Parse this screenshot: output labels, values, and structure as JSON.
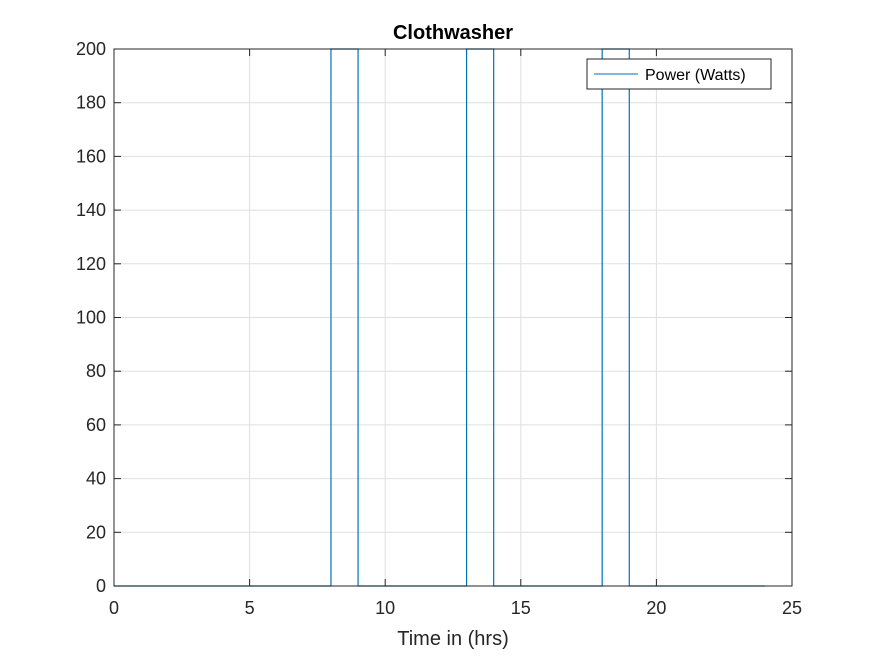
{
  "chart_data": {
    "type": "line",
    "title": "Clothwasher",
    "xlabel": "Time in (hrs)",
    "ylabel": "",
    "xlim": [
      0,
      25
    ],
    "ylim": [
      0,
      200
    ],
    "xticks": [
      0,
      5,
      10,
      15,
      20,
      25
    ],
    "yticks": [
      0,
      20,
      40,
      60,
      80,
      100,
      120,
      140,
      160,
      180,
      200
    ],
    "grid": true,
    "legend_position": "top-right",
    "series": [
      {
        "name": "Power (Watts)",
        "color": "#0072BD",
        "x": [
          0,
          8,
          8,
          9,
          9,
          13,
          13,
          14,
          14,
          18,
          18,
          19,
          19,
          24
        ],
        "y": [
          0,
          0,
          200,
          200,
          0,
          0,
          200,
          200,
          0,
          0,
          200,
          200,
          0,
          0
        ]
      }
    ]
  }
}
